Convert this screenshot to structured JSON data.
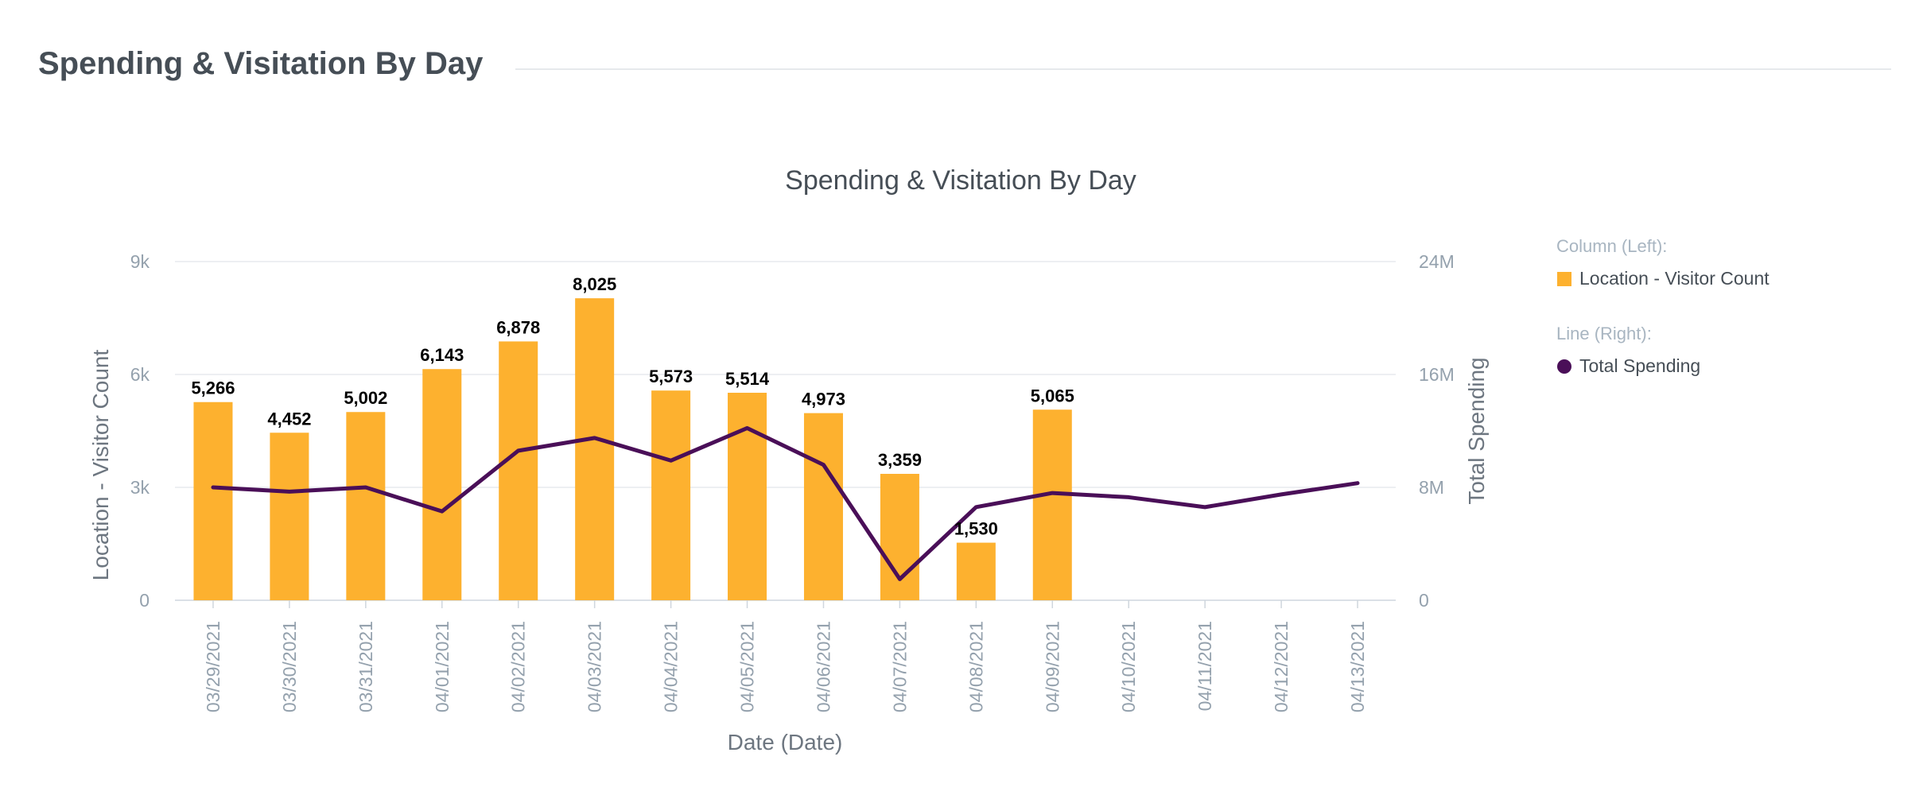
{
  "header": {
    "title": "Spending & Visitation By Day"
  },
  "chart_data": {
    "type": "bar+line",
    "title": "Spending & Visitation By Day",
    "xlabel": "Date (Date)",
    "ylabel_left": "Location - Visitor Count",
    "ylabel_right": "Total Spending",
    "ylim_left": [
      0,
      9000
    ],
    "ylim_right": [
      0,
      24000000
    ],
    "yticks_left": [
      {
        "value": 0,
        "label": "0"
      },
      {
        "value": 3000,
        "label": "3k"
      },
      {
        "value": 6000,
        "label": "6k"
      },
      {
        "value": 9000,
        "label": "9k"
      }
    ],
    "yticks_right": [
      {
        "value": 0,
        "label": "0"
      },
      {
        "value": 8000000,
        "label": "8M"
      },
      {
        "value": 16000000,
        "label": "16M"
      },
      {
        "value": 24000000,
        "label": "24M"
      }
    ],
    "categories": [
      "03/29/2021",
      "03/30/2021",
      "03/31/2021",
      "04/01/2021",
      "04/02/2021",
      "04/03/2021",
      "04/04/2021",
      "04/05/2021",
      "04/06/2021",
      "04/07/2021",
      "04/08/2021",
      "04/09/2021",
      "04/10/2021",
      "04/11/2021",
      "04/12/2021",
      "04/13/2021"
    ],
    "series": [
      {
        "name": "Location - Visitor Count",
        "type": "bar",
        "axis": "left",
        "color": "#fdb12f",
        "values": [
          5266,
          4452,
          5002,
          6143,
          6878,
          8025,
          5573,
          5514,
          4973,
          3359,
          1530,
          5065,
          null,
          null,
          null,
          null
        ],
        "labels": [
          "5,266",
          "4,452",
          "5,002",
          "6,143",
          "6,878",
          "8,025",
          "5,573",
          "5,514",
          "4,973",
          "3,359",
          "1,530",
          "5,065",
          "",
          "",
          "",
          ""
        ]
      },
      {
        "name": "Total Spending",
        "type": "line",
        "axis": "right",
        "color": "#4a0f58",
        "values": [
          8000000,
          7700000,
          8000000,
          6300000,
          10600000,
          11500000,
          9900000,
          12200000,
          9600000,
          1500000,
          6600000,
          7600000,
          7300000,
          6600000,
          7500000,
          8300000
        ]
      }
    ],
    "legend": {
      "position": "right",
      "groups": [
        {
          "heading": "Column (Left):",
          "items": [
            {
              "label": "Location - Visitor Count",
              "color": "#fdb12f",
              "marker": "square"
            }
          ]
        },
        {
          "heading": "Line (Right):",
          "items": [
            {
              "label": "Total Spending",
              "color": "#4a0f58",
              "marker": "circle"
            }
          ]
        }
      ]
    },
    "grid": true
  }
}
